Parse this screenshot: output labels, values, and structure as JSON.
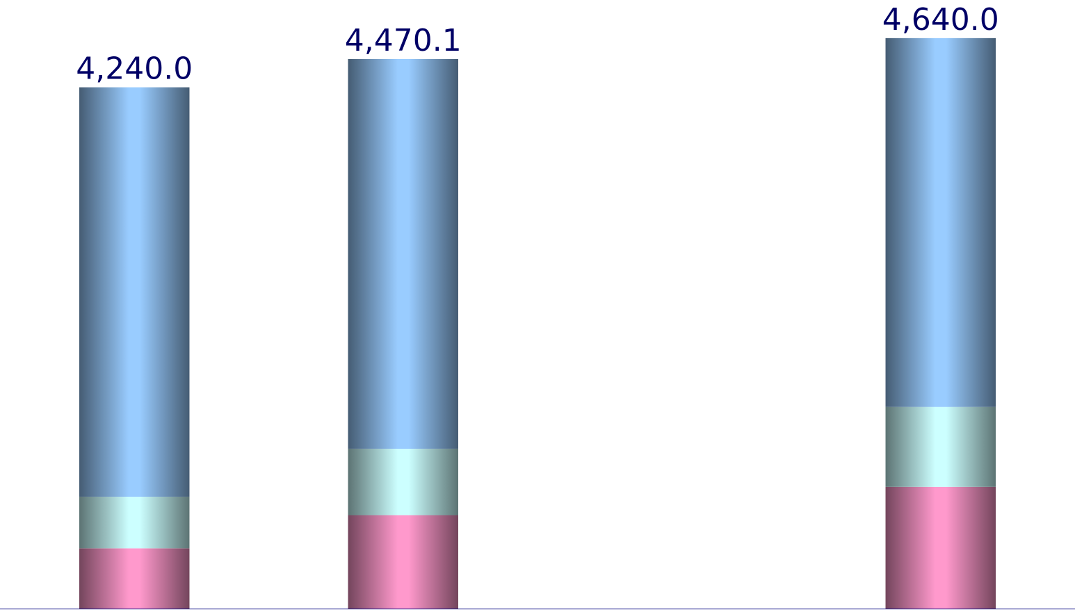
{
  "chart_data": {
    "type": "stacked_bar",
    "categories": [
      null,
      null,
      null,
      null
    ],
    "series": [
      {
        "color": "#ff99cc",
        "values": [
          490,
          760,
          null,
          990
        ]
      },
      {
        "color": "#ccffff",
        "values": [
          420,
          540,
          null,
          650
        ]
      },
      {
        "color": "#99ccff",
        "values": [
          3330,
          3170,
          null,
          3000
        ]
      }
    ],
    "totals": [
      4240.0,
      4470.1,
      null,
      4640.0
    ],
    "total_labels": [
      "4,240.0",
      "4,470.1",
      null,
      "4,640.0"
    ],
    "label_color": "#000066",
    "axis_color": "#000080",
    "ylim": [
      0,
      4950
    ]
  }
}
